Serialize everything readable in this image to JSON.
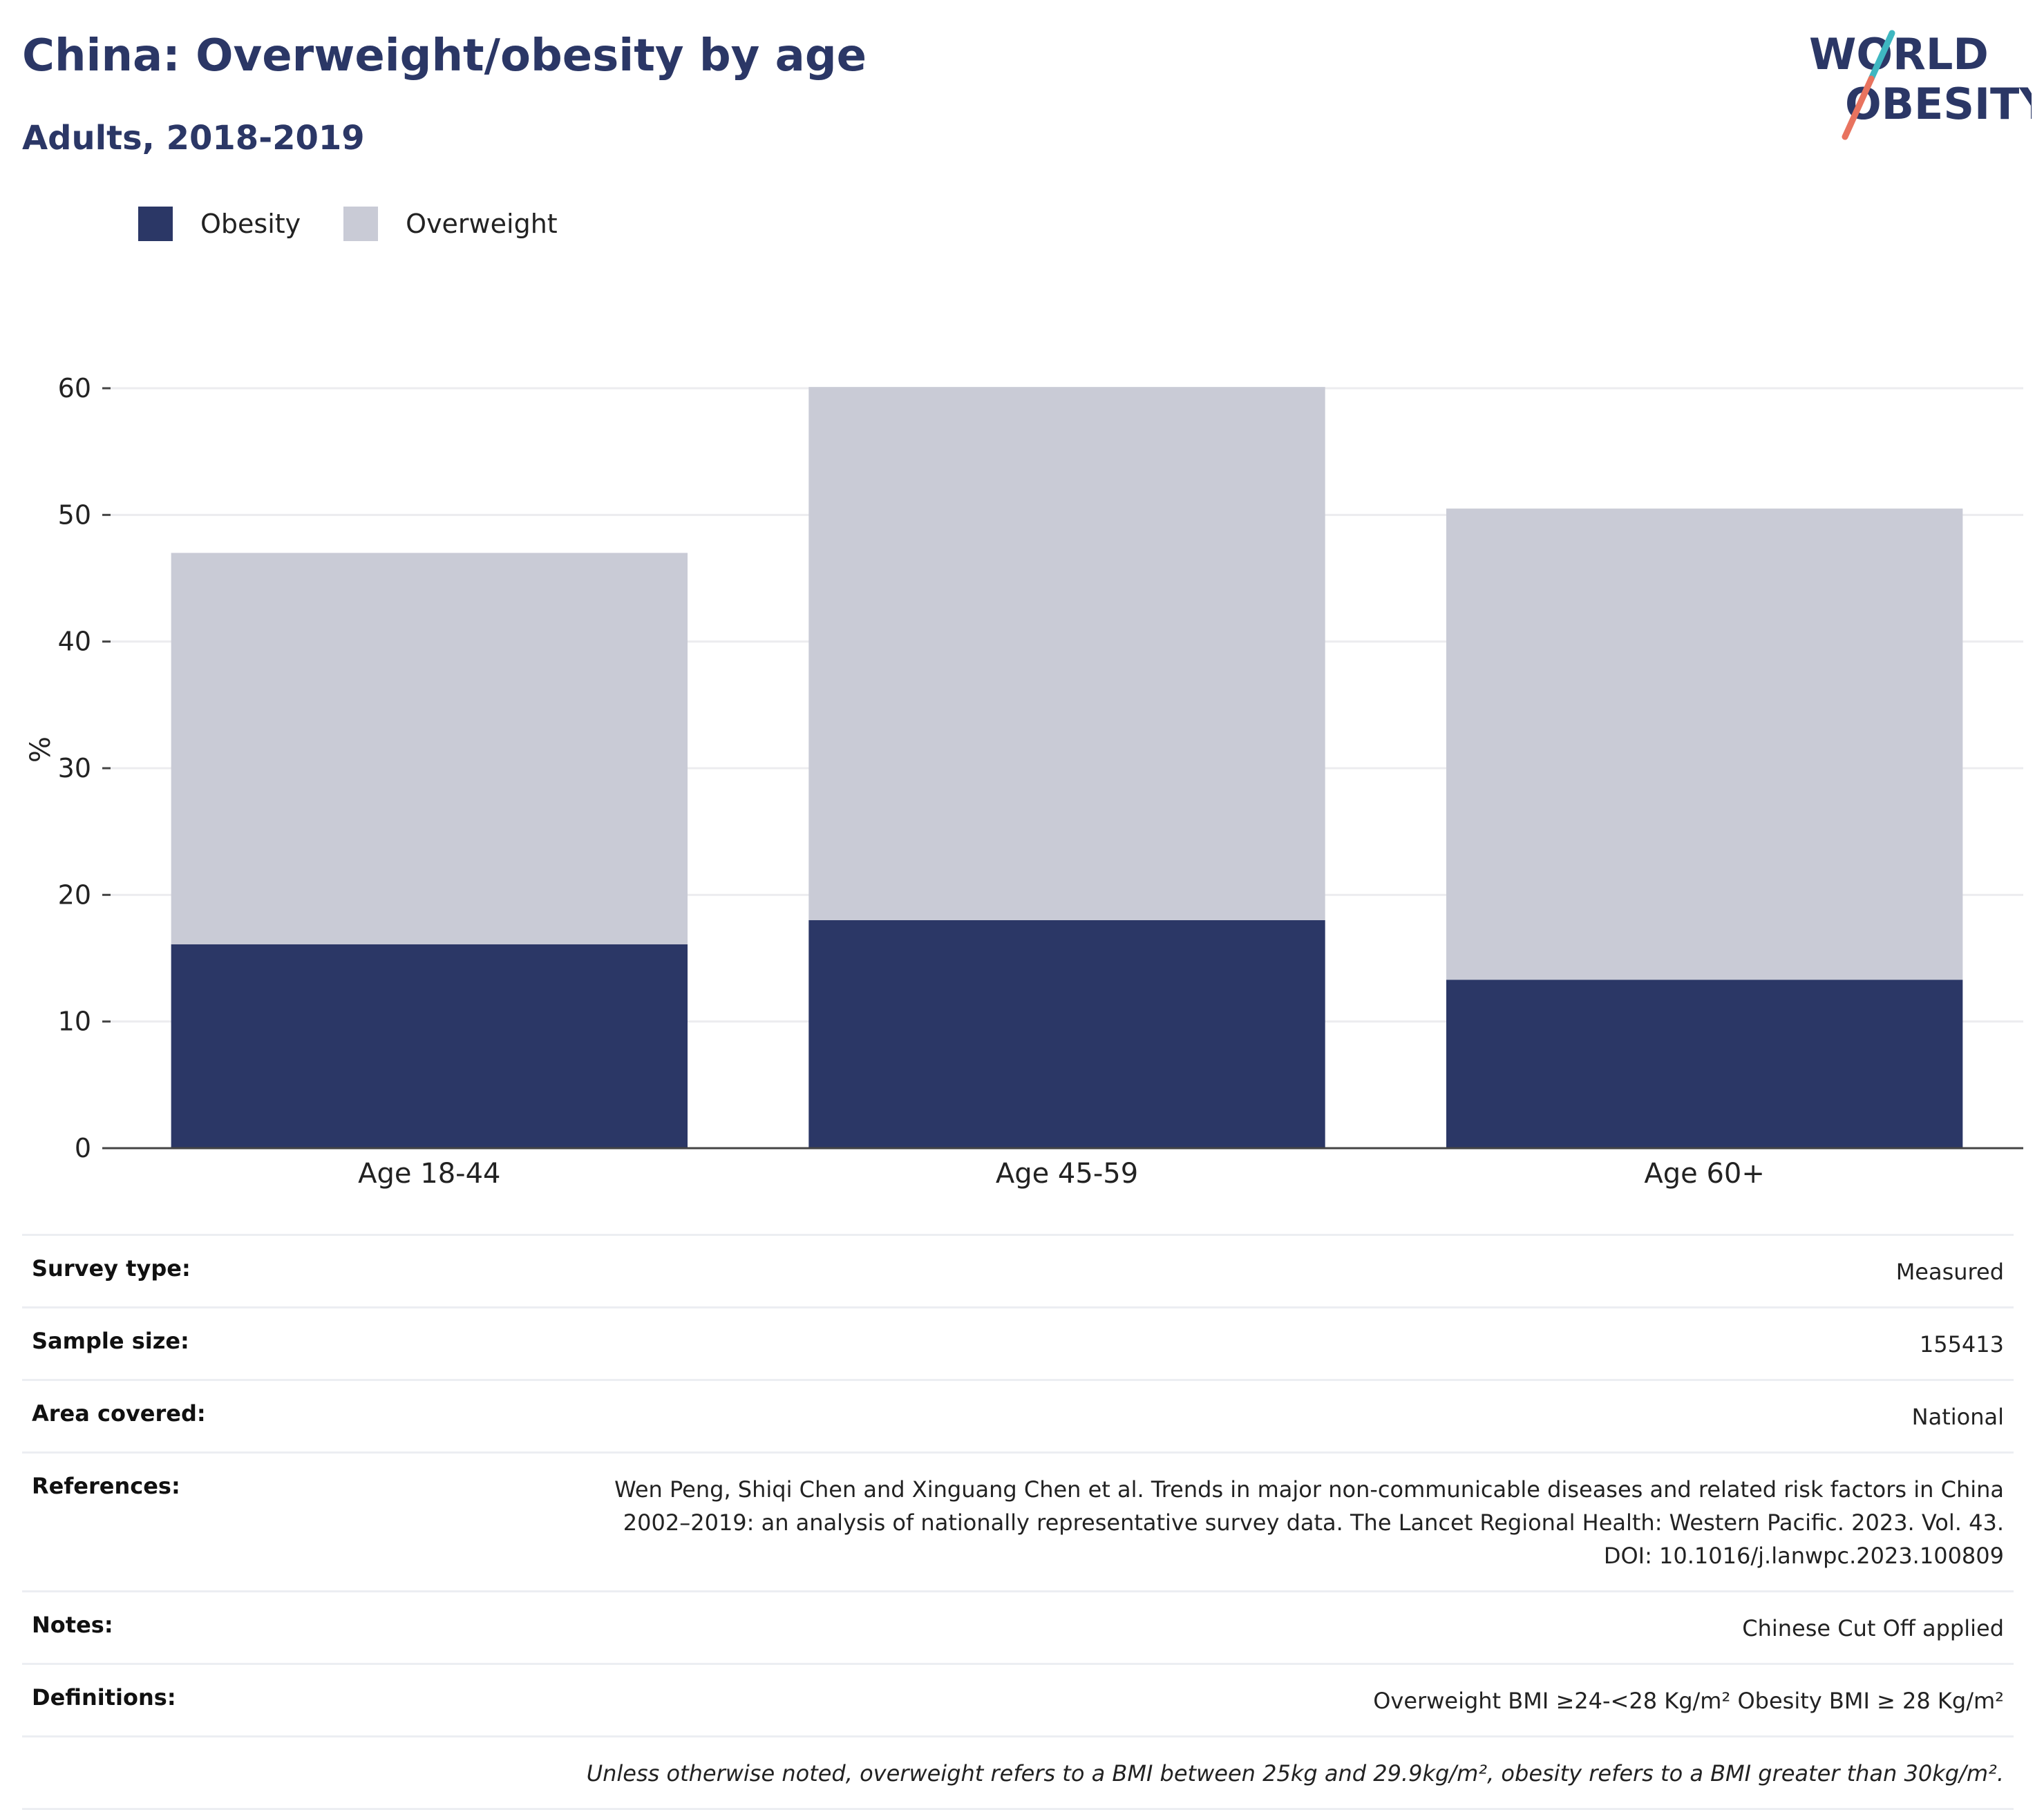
{
  "header": {
    "title": "China: Overweight/obesity by age",
    "subtitle": "Adults, 2018-2019"
  },
  "logo": {
    "line1": "WORLD",
    "line2": "OBESITY",
    "colors": {
      "text": "#2b3766",
      "slash_teal": "#3fb7c1",
      "slash_coral": "#e8735f"
    }
  },
  "legend": [
    {
      "label": "Obesity",
      "color": "#2b3766"
    },
    {
      "label": "Overweight",
      "color": "#c9cbd6"
    }
  ],
  "chart_data": {
    "type": "bar",
    "stacked": true,
    "categories": [
      "Age 18-44",
      "Age 45-59",
      "Age 60+"
    ],
    "series": [
      {
        "name": "Obesity",
        "values": [
          16.1,
          18.0,
          13.3
        ],
        "color": "#2b3766"
      },
      {
        "name": "Overweight",
        "values": [
          30.9,
          42.1,
          37.2
        ],
        "color": "#c9cbd6"
      }
    ],
    "ylabel": "%",
    "ylim": [
      0,
      60
    ],
    "yticks": [
      0,
      10,
      20,
      30,
      40,
      50,
      60
    ],
    "grid": true,
    "legend_position": "top-left"
  },
  "meta": [
    {
      "key": "Survey type:",
      "value": "Measured"
    },
    {
      "key": "Sample size:",
      "value": "155413"
    },
    {
      "key": "Area covered:",
      "value": "National"
    },
    {
      "key": "References:",
      "value": "Wen Peng, Shiqi Chen and Xinguang Chen et al. Trends in major non-communicable diseases and related risk factors in China 2002–2019: an analysis of nationally representative survey data. The Lancet Regional Health: Western Pacific. 2023. Vol. 43. DOI: 10.1016/j.lanwpc.2023.100809"
    },
    {
      "key": "Notes:",
      "value": "Chinese Cut Off applied"
    },
    {
      "key": "Definitions:",
      "value": "Overweight BMI ≥24-<28 Kg/m² Obesity BMI ≥ 28 Kg/m²"
    }
  ],
  "footnote": "Unless otherwise noted, overweight refers to a BMI between 25kg and 29.9kg/m², obesity refers to a BMI greater than 30kg/m²."
}
